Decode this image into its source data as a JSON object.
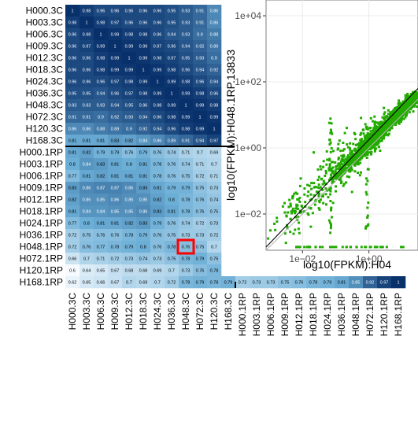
{
  "chart_data": [
    {
      "type": "heatmap",
      "row_labels": [
        "H000.3C",
        "H003.3C",
        "H006.3C",
        "H009.3C",
        "H012.3C",
        "H018.3C",
        "H024.3C",
        "H036.3C",
        "H048.3C",
        "H072.3C",
        "H120.3C",
        "H168.3C",
        "H000.1RP",
        "H003.1RP",
        "H006.1RP",
        "H009.1RP",
        "H012.1RP",
        "H018.1RP",
        "H024.1RP",
        "H036.1RP",
        "H048.1RP",
        "H072.1RP",
        "H120.1RP",
        "H168.1RP"
      ],
      "col_labels": [
        "H000.3C",
        "H003.3C",
        "H006.3C",
        "H009.3C",
        "H012.3C",
        "H018.3C",
        "H024.3C",
        "H036.3C",
        "H048.3C",
        "H072.3C",
        "H120.3C",
        "H168.3C",
        "H000.1RP",
        "H003.1RP",
        "H006.1RP",
        "H009.1RP",
        "H012.1RP",
        "H018.1RP",
        "H024.1RP",
        "H036.1RP",
        "H048.1RP",
        "H072.1RP",
        "H120.1RP",
        "H168.1RP"
      ],
      "values": [
        [
          1,
          0.98,
          0.96,
          0.96,
          0.96,
          0.96,
          0.96,
          0.95,
          0.93,
          0.91,
          0.86,
          0.81,
          0.81,
          0.8,
          0.77,
          0.83,
          0.82,
          0.81,
          0.77,
          0.72,
          0.72,
          0.66,
          0.6,
          0.62
        ],
        [
          0.98,
          1,
          0.98,
          0.97,
          0.96,
          0.96,
          0.96,
          0.95,
          0.93,
          0.91,
          0.86,
          0.81,
          0.82,
          0.84,
          0.81,
          0.86,
          0.85,
          0.84,
          0.8,
          0.75,
          0.76,
          0.7,
          0.64,
          0.65
        ],
        [
          0.96,
          0.98,
          1,
          0.99,
          0.98,
          0.98,
          0.96,
          0.94,
          0.93,
          0.9,
          0.88,
          0.81,
          0.79,
          0.83,
          0.82,
          0.87,
          0.85,
          0.84,
          0.81,
          0.76,
          0.77,
          0.71,
          0.65,
          0.66
        ],
        [
          0.96,
          0.97,
          0.99,
          1,
          0.99,
          0.99,
          0.97,
          0.96,
          0.94,
          0.92,
          0.89,
          0.83,
          0.79,
          0.81,
          0.81,
          0.87,
          0.86,
          0.85,
          0.81,
          0.76,
          0.78,
          0.72,
          0.67,
          0.67
        ],
        [
          0.96,
          0.96,
          0.98,
          0.99,
          1,
          0.99,
          0.98,
          0.97,
          0.95,
          0.93,
          0.9,
          0.82,
          0.76,
          0.8,
          0.81,
          0.86,
          0.85,
          0.85,
          0.82,
          0.78,
          0.79,
          0.73,
          0.68,
          0.7
        ],
        [
          0.96,
          0.96,
          0.98,
          0.99,
          0.99,
          1,
          0.99,
          0.98,
          0.96,
          0.94,
          0.92,
          0.84,
          0.79,
          0.81,
          0.81,
          0.83,
          0.85,
          0.86,
          0.83,
          0.79,
          0.79,
          0.74,
          0.68,
          0.69
        ],
        [
          0.96,
          0.96,
          0.96,
          0.97,
          0.98,
          0.99,
          1,
          0.99,
          0.98,
          0.96,
          0.94,
          0.86,
          0.76,
          0.78,
          0.78,
          0.81,
          0.82,
          0.83,
          0.79,
          0.76,
          0.76,
          0.73,
          0.69,
          0.7
        ],
        [
          0.95,
          0.95,
          0.94,
          0.96,
          0.97,
          0.98,
          0.99,
          1,
          0.99,
          0.98,
          0.96,
          0.89,
          0.74,
          0.76,
          0.76,
          0.79,
          0.8,
          0.81,
          0.76,
          0.75,
          0.78,
          0.75,
          0.7,
          0.72
        ],
        [
          0.93,
          0.93,
          0.93,
          0.94,
          0.95,
          0.96,
          0.98,
          0.99,
          1,
          0.99,
          0.98,
          0.91,
          0.71,
          0.74,
          0.75,
          0.79,
          0.78,
          0.78,
          0.74,
          0.73,
          0.76,
          0.78,
          0.73,
          0.78
        ],
        [
          0.91,
          0.91,
          0.9,
          0.92,
          0.93,
          0.94,
          0.96,
          0.98,
          0.99,
          1,
          0.99,
          0.94,
          0.7,
          0.71,
          0.72,
          0.75,
          0.76,
          0.76,
          0.72,
          0.73,
          0.75,
          0.79,
          0.76,
          0.79
        ],
        [
          0.86,
          0.86,
          0.88,
          0.89,
          0.9,
          0.92,
          0.94,
          0.96,
          0.98,
          0.99,
          1,
          0.97,
          0.69,
          0.7,
          0.71,
          0.73,
          0.74,
          0.75,
          0.73,
          0.72,
          0.7,
          0.75,
          0.78,
          0.78
        ],
        [
          0.81,
          0.81,
          0.81,
          0.83,
          0.82,
          0.84,
          0.86,
          0.89,
          0.91,
          0.94,
          0.97,
          1,
          0.67,
          0.68,
          0.69,
          0.7,
          0.71,
          0.72,
          0.72,
          0.73,
          0.73,
          0.72,
          0.78,
          0.79
        ],
        [
          0.81,
          0.82,
          0.79,
          0.79,
          0.76,
          0.79,
          0.76,
          0.74,
          0.71,
          0.7,
          0.69,
          0.67,
          1,
          0.91,
          0.88,
          0.86,
          0.85,
          0.84,
          0.86,
          0.87,
          0.88,
          0.8,
          0.72,
          0.72
        ],
        [
          0.8,
          0.84,
          0.83,
          0.81,
          0.8,
          0.81,
          0.78,
          0.76,
          0.74,
          0.71,
          0.7,
          0.68,
          0.91,
          1,
          0.97,
          0.93,
          0.9,
          0.91,
          0.9,
          0.91,
          0.9,
          0.82,
          0.73,
          0.73
        ],
        [
          0.77,
          0.81,
          0.82,
          0.81,
          0.81,
          0.81,
          0.78,
          0.76,
          0.75,
          0.72,
          0.71,
          0.69,
          0.88,
          0.97,
          1,
          0.96,
          0.93,
          0.92,
          0.92,
          0.93,
          0.94,
          0.89,
          0.75,
          0.73
        ],
        [
          0.83,
          0.86,
          0.87,
          0.87,
          0.86,
          0.83,
          0.81,
          0.79,
          0.79,
          0.75,
          0.73,
          0.7,
          0.86,
          0.93,
          0.96,
          1,
          0.98,
          0.96,
          0.94,
          0.93,
          0.91,
          0.85,
          0.76,
          0.75
        ],
        [
          0.82,
          0.85,
          0.85,
          0.86,
          0.85,
          0.85,
          0.82,
          0.8,
          0.78,
          0.76,
          0.74,
          0.71,
          0.85,
          0.9,
          0.93,
          0.98,
          1,
          0.98,
          0.96,
          0.94,
          0.92,
          0.84,
          0.76,
          0.76
        ],
        [
          0.81,
          0.84,
          0.84,
          0.85,
          0.85,
          0.86,
          0.83,
          0.81,
          0.78,
          0.76,
          0.75,
          0.72,
          0.84,
          0.91,
          0.92,
          0.96,
          0.98,
          1,
          0.98,
          0.96,
          0.95,
          0.88,
          0.79,
          0.78
        ],
        [
          0.77,
          0.8,
          0.81,
          0.81,
          0.82,
          0.83,
          0.79,
          0.76,
          0.74,
          0.72,
          0.73,
          0.72,
          0.86,
          0.9,
          0.92,
          0.94,
          0.96,
          0.98,
          1,
          0.98,
          0.96,
          0.9,
          0.81,
          0.79
        ],
        [
          0.72,
          0.75,
          0.76,
          0.76,
          0.78,
          0.79,
          0.76,
          0.75,
          0.73,
          0.73,
          0.72,
          0.73,
          0.87,
          0.91,
          0.93,
          0.93,
          0.94,
          0.96,
          0.98,
          1,
          0.97,
          0.91,
          0.83,
          0.81
        ],
        [
          0.72,
          0.76,
          0.77,
          0.78,
          0.79,
          0.8,
          0.76,
          0.78,
          0.76,
          0.75,
          0.7,
          0.73,
          0.88,
          0.9,
          0.94,
          0.91,
          0.92,
          0.95,
          0.96,
          0.97,
          1,
          0.94,
          0.87,
          0.85
        ],
        [
          0.66,
          0.7,
          0.71,
          0.72,
          0.73,
          0.74,
          0.73,
          0.75,
          0.78,
          0.79,
          0.75,
          0.72,
          0.8,
          0.82,
          0.89,
          0.85,
          0.84,
          0.88,
          0.9,
          0.91,
          0.94,
          1,
          0.94,
          0.92
        ],
        [
          0.6,
          0.64,
          0.65,
          0.67,
          0.68,
          0.68,
          0.69,
          0.7,
          0.73,
          0.76,
          0.78,
          0.78,
          0.72,
          0.73,
          0.75,
          0.76,
          0.76,
          0.79,
          0.81,
          0.83,
          0.87,
          0.94,
          1,
          0.97
        ],
        [
          0.62,
          0.65,
          0.66,
          0.67,
          0.7,
          0.69,
          0.7,
          0.72,
          0.78,
          0.79,
          0.78,
          0.79,
          0.72,
          0.73,
          0.73,
          0.75,
          0.76,
          0.78,
          0.79,
          0.81,
          0.85,
          0.92,
          0.97,
          1
        ]
      ],
      "highlight_cell": {
        "row": "H048.1RP",
        "col": "H048.3C",
        "color": "#ff0000"
      },
      "group_divider_after": "H168.3C",
      "colors": {
        "low": "#f7fbff",
        "mid": "#6baed6",
        "high": "#08306b"
      }
    },
    {
      "type": "scatter",
      "xlabel": "log10(FPKM):H04",
      "ylabel": "log10(FPKM):H048.1RP.13833",
      "x_scale": "log",
      "y_scale": "log",
      "xlim": [
        0.0008,
        30
      ],
      "ylim": [
        0.0008,
        30000
      ],
      "x_ticks": [
        0.01,
        1
      ],
      "x_tick_labels": [
        "1e−02",
        "1e+00"
      ],
      "y_ticks": [
        0.01,
        1,
        100,
        10000
      ],
      "y_tick_labels": [
        "1e−02",
        "1e+00",
        "1e+02",
        "1e+04"
      ],
      "grid": true,
      "point_color": "#22aa00",
      "lines": [
        {
          "kind": "identity",
          "color": "#b5b5b5"
        },
        {
          "kind": "fit",
          "color": "#000000"
        }
      ]
    }
  ]
}
